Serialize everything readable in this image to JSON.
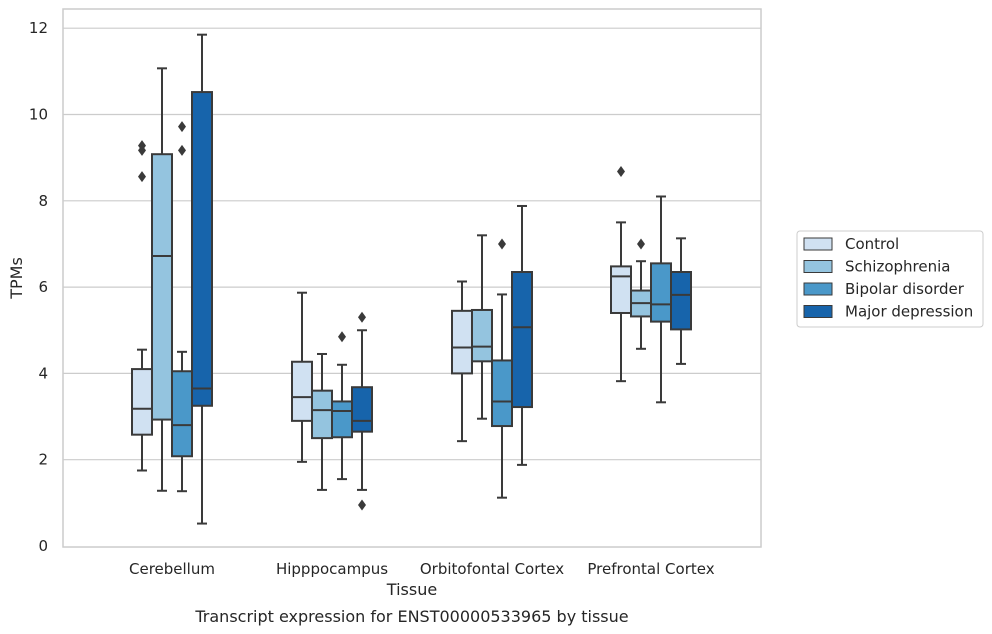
{
  "chart_data": {
    "type": "box",
    "xlabel": "Tissue",
    "ylabel": "TPMs",
    "caption": "Transcript expression for ENST00000533965 by tissue",
    "ylim": [
      0,
      12.4
    ],
    "yticks": [
      0,
      2,
      4,
      6,
      8,
      10,
      12
    ],
    "grid": true,
    "legend_position": "right",
    "categories": [
      "Cerebellum",
      "Hipppocampus",
      "Orbitofontal Cortex",
      "Prefrontal Cortex"
    ],
    "series": [
      {
        "name": "Control",
        "color": "#d0e1f2",
        "boxes": [
          {
            "whislo": 1.75,
            "q1": 2.58,
            "med": 3.18,
            "q3": 4.1,
            "whishi": 4.55,
            "fliers": []
          },
          {
            "whislo": 1.95,
            "q1": 2.9,
            "med": 3.45,
            "q3": 4.27,
            "whishi": 5.87,
            "fliers": []
          },
          {
            "whislo": 2.43,
            "q1": 4.0,
            "med": 4.6,
            "q3": 5.45,
            "whishi": 6.13,
            "fliers": []
          },
          {
            "whislo": 3.82,
            "q1": 5.4,
            "med": 6.25,
            "q3": 6.48,
            "whishi": 7.5,
            "fliers": [
              8.68
            ]
          }
        ]
      },
      {
        "name": "Schizophrenia",
        "color": "#94c4df",
        "boxes": [
          {
            "whislo": 1.28,
            "q1": 2.93,
            "med": 6.72,
            "q3": 9.08,
            "whishi": 11.07,
            "fliers": []
          },
          {
            "whislo": 1.3,
            "q1": 2.5,
            "med": 3.15,
            "q3": 3.6,
            "whishi": 4.45,
            "fliers": []
          },
          {
            "whislo": 2.95,
            "q1": 4.28,
            "med": 4.62,
            "q3": 5.47,
            "whishi": 7.2,
            "fliers": []
          },
          {
            "whislo": 4.57,
            "q1": 5.32,
            "med": 5.63,
            "q3": 5.92,
            "whishi": 6.6,
            "fliers": [
              7.0
            ]
          }
        ]
      },
      {
        "name": "Bipolar disorder",
        "color": "#4a98c9",
        "boxes": [
          {
            "whislo": 1.27,
            "q1": 2.08,
            "med": 2.8,
            "q3": 4.05,
            "whishi": 4.5,
            "fliers": [
              9.72,
              9.17
            ]
          },
          {
            "whislo": 1.55,
            "q1": 2.52,
            "med": 3.13,
            "q3": 3.35,
            "whishi": 4.2,
            "fliers": [
              4.85
            ]
          },
          {
            "whislo": 1.12,
            "q1": 2.78,
            "med": 3.35,
            "q3": 4.3,
            "whishi": 5.83,
            "fliers": [
              7.0
            ]
          },
          {
            "whislo": 3.33,
            "q1": 5.2,
            "med": 5.6,
            "q3": 6.55,
            "whishi": 8.1,
            "fliers": []
          }
        ]
      },
      {
        "name": "Major depression",
        "color": "#1764ab",
        "boxes": [
          {
            "whislo": 0.52,
            "q1": 3.25,
            "med": 3.65,
            "q3": 10.52,
            "whishi": 11.85,
            "fliers": []
          },
          {
            "whislo": 1.3,
            "q1": 2.65,
            "med": 2.9,
            "q3": 3.68,
            "whishi": 5.0,
            "fliers": [
              5.3,
              0.95
            ]
          },
          {
            "whislo": 1.88,
            "q1": 3.22,
            "med": 5.07,
            "q3": 6.35,
            "whishi": 7.88,
            "fliers": []
          },
          {
            "whislo": 4.22,
            "q1": 5.02,
            "med": 5.82,
            "q3": 6.35,
            "whishi": 7.13,
            "fliers": []
          }
        ]
      }
    ],
    "extra_fliers_by_group": [
      {
        "category": "Cerebellum",
        "series": "Control",
        "values": [
          9.28,
          9.17,
          8.56
        ]
      }
    ]
  }
}
